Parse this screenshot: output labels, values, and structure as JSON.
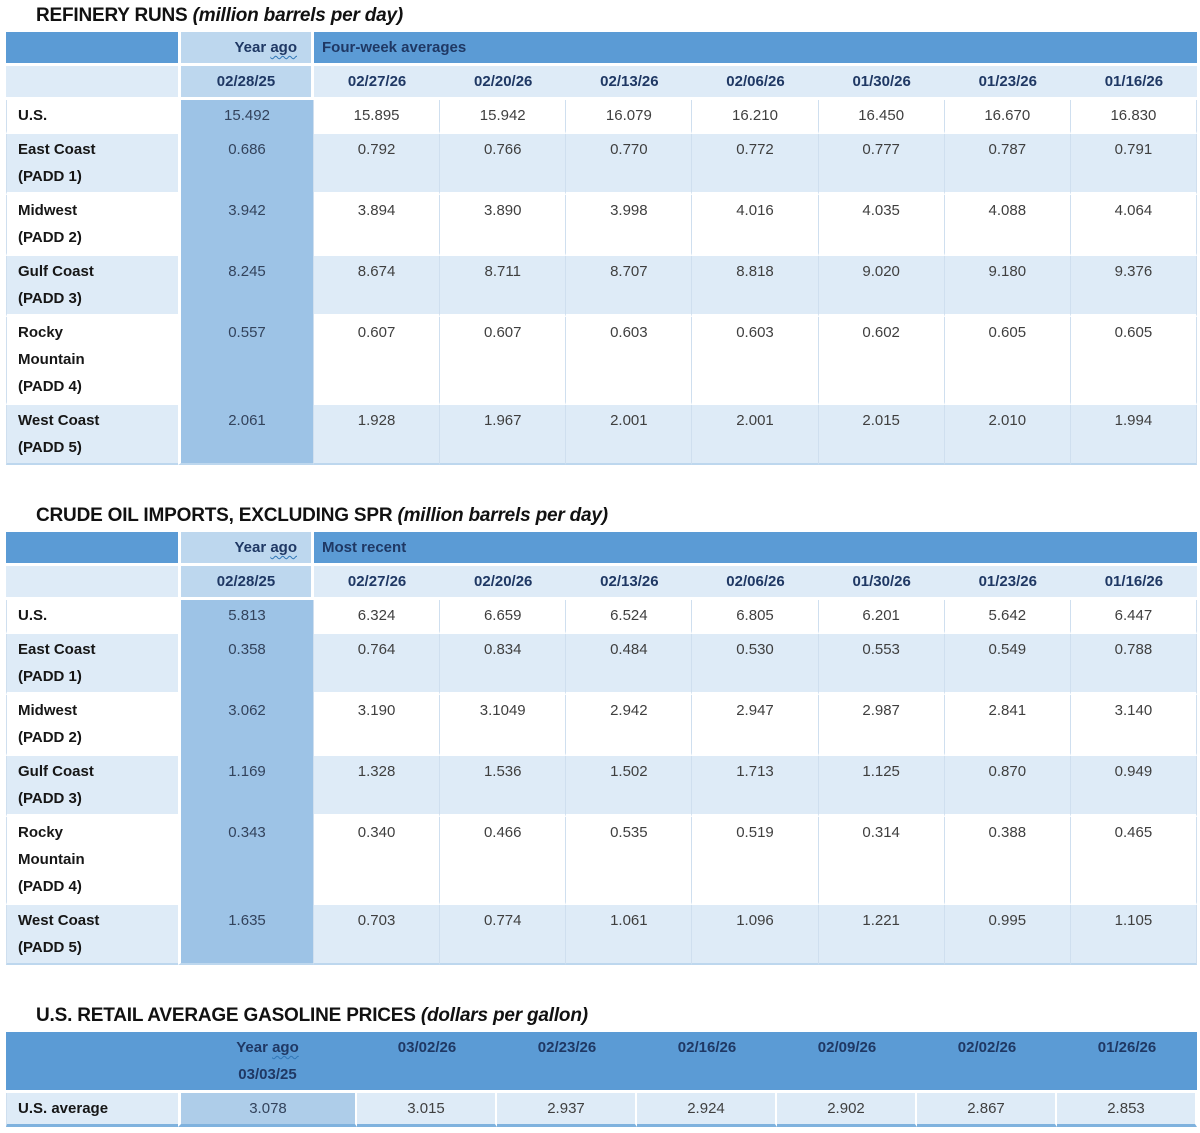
{
  "colors": {
    "header_band_blue": "#5b9bd5",
    "year_ago_header_blue": "#bdd7ee",
    "year_ago_column_blue": "#9dc3e6",
    "gasoline_year_ago_blue": "#aecde9",
    "light_row_blue": "#deebf7",
    "header_text_navy": "#1f3864",
    "body_text_gray": "#3f3f3f",
    "squiggle_blue": "#2e75b6"
  },
  "tables": [
    {
      "id": "refinery-runs",
      "title": "REFINERY RUNS",
      "unit": "(million barrels per day)",
      "year_ago_label": "Year ago",
      "group_label": "Four-week averages",
      "year_ago_date": "02/28/25",
      "dates": [
        "02/27/26",
        "02/20/26",
        "02/13/26",
        "02/06/26",
        "01/30/26",
        "01/23/26",
        "01/16/26"
      ],
      "rows": [
        {
          "label_lines": [
            "U.S."
          ],
          "year_ago": "15.492",
          "values": [
            "15.895",
            "15.942",
            "16.079",
            "16.210",
            "16.450",
            "16.670",
            "16.830"
          ],
          "striped": false
        },
        {
          "label_lines": [
            "East Coast",
            "(PADD 1)"
          ],
          "year_ago": "0.686",
          "values": [
            "0.792",
            "0.766",
            "0.770",
            "0.772",
            "0.777",
            "0.787",
            "0.791"
          ],
          "striped": true
        },
        {
          "label_lines": [
            "Midwest",
            "(PADD 2)"
          ],
          "year_ago": "3.942",
          "values": [
            "3.894",
            "3.890",
            "3.998",
            "4.016",
            "4.035",
            "4.088",
            "4.064"
          ],
          "striped": false
        },
        {
          "label_lines": [
            "Gulf Coast",
            "(PADD 3)"
          ],
          "year_ago": "8.245",
          "values": [
            "8.674",
            "8.711",
            "8.707",
            "8.818",
            "9.020",
            "9.180",
            "9.376"
          ],
          "striped": true
        },
        {
          "label_lines": [
            "Rocky",
            "Mountain",
            "(PADD 4)"
          ],
          "year_ago": "0.557",
          "values": [
            "0.607",
            "0.607",
            "0.603",
            "0.603",
            "0.602",
            "0.605",
            "0.605"
          ],
          "striped": false
        },
        {
          "label_lines": [
            "West Coast",
            "(PADD 5)"
          ],
          "year_ago": "2.061",
          "values": [
            "1.928",
            "1.967",
            "2.001",
            "2.001",
            "2.015",
            "2.010",
            "1.994"
          ],
          "striped": true
        }
      ]
    },
    {
      "id": "crude-oil-imports",
      "title": "CRUDE OIL IMPORTS, EXCLUDING SPR",
      "unit": "(million barrels per day)",
      "year_ago_label": "Year ago",
      "group_label": "Most recent",
      "year_ago_date": "02/28/25",
      "dates": [
        "02/27/26",
        "02/20/26",
        "02/13/26",
        "02/06/26",
        "01/30/26",
        "01/23/26",
        "01/16/26"
      ],
      "rows": [
        {
          "label_lines": [
            "U.S."
          ],
          "year_ago": "5.813",
          "values": [
            "6.324",
            "6.659",
            "6.524",
            "6.805",
            "6.201",
            "5.642",
            "6.447"
          ],
          "striped": false
        },
        {
          "label_lines": [
            "East Coast",
            "(PADD 1)"
          ],
          "year_ago": "0.358",
          "values": [
            "0.764",
            "0.834",
            "0.484",
            "0.530",
            "0.553",
            "0.549",
            "0.788"
          ],
          "striped": true
        },
        {
          "label_lines": [
            "Midwest",
            "(PADD 2)"
          ],
          "year_ago": "3.062",
          "values": [
            "3.190",
            "3.1049",
            "2.942",
            "2.947",
            "2.987",
            "2.841",
            "3.140"
          ],
          "striped": false
        },
        {
          "label_lines": [
            "Gulf Coast",
            "(PADD 3)"
          ],
          "year_ago": "1.169",
          "values": [
            "1.328",
            "1.536",
            "1.502",
            "1.713",
            "1.125",
            "0.870",
            "0.949"
          ],
          "striped": true
        },
        {
          "label_lines": [
            "Rocky",
            "Mountain",
            "(PADD 4)"
          ],
          "year_ago": "0.343",
          "values": [
            "0.340",
            "0.466",
            "0.535",
            "0.519",
            "0.314",
            "0.388",
            "0.465"
          ],
          "striped": false
        },
        {
          "label_lines": [
            "West Coast",
            "(PADD 5)"
          ],
          "year_ago": "1.635",
          "values": [
            "0.703",
            "0.774",
            "1.061",
            "1.096",
            "1.221",
            "0.995",
            "1.105"
          ],
          "striped": true
        }
      ]
    },
    {
      "id": "gasoline-prices",
      "title": "U.S. RETAIL AVERAGE GASOLINE PRICES",
      "unit": "(dollars per gallon)",
      "layout": "compact",
      "year_ago_label": "Year ago",
      "year_ago_date": "03/03/25",
      "dates": [
        "03/02/26",
        "02/23/26",
        "02/16/26",
        "02/09/26",
        "02/02/26",
        "01/26/26"
      ],
      "rows": [
        {
          "label_lines": [
            "U.S. average"
          ],
          "year_ago": "3.078",
          "values": [
            "3.015",
            "2.937",
            "2.924",
            "2.902",
            "2.867",
            "2.853"
          ],
          "striped": true
        }
      ]
    }
  ]
}
